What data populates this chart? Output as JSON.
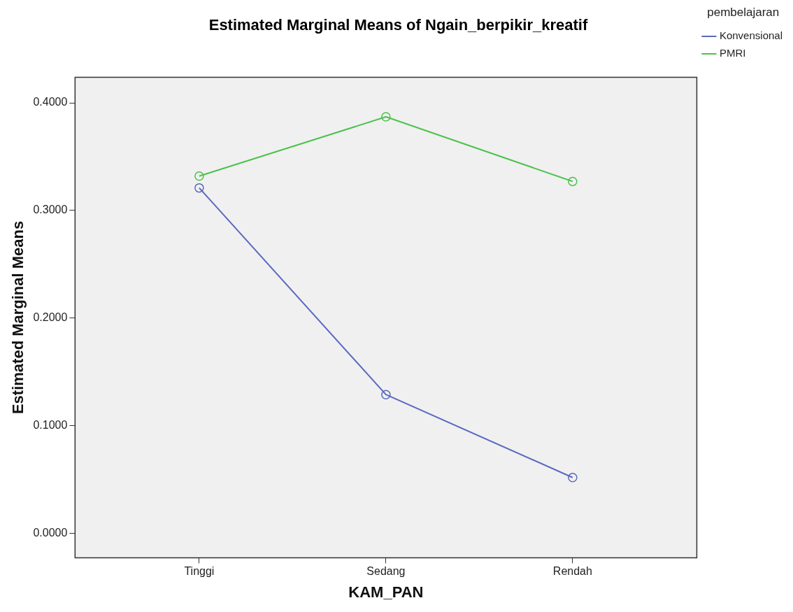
{
  "chart_data": {
    "type": "line",
    "title": "Estimated Marginal Means of Ngain_berpikir_kreatif",
    "xlabel": "KAM_PAN",
    "ylabel": "Estimated Marginal Means",
    "legend_title": "pembelajaran",
    "categories": [
      "Tinggi",
      "Sedang",
      "Rendah"
    ],
    "series": [
      {
        "name": "Konvensional",
        "color": "#5a68c0",
        "values": [
          0.321,
          0.129,
          0.052
        ]
      },
      {
        "name": "PMRI",
        "color": "#4cc24c",
        "values": [
          0.332,
          0.387,
          0.327
        ]
      }
    ],
    "ylim": [
      -0.0225,
      0.4238
    ],
    "yticks": [
      {
        "value": 0,
        "label": "0.0000"
      },
      {
        "value": 0.1,
        "label": "0.1000"
      },
      {
        "value": 0.2,
        "label": "0.2000"
      },
      {
        "value": 0.3,
        "label": "0.3000"
      },
      {
        "value": 0.4,
        "label": "0.4000"
      }
    ],
    "grid": false,
    "legend": "top right",
    "marker": "circle",
    "line_style": "solid"
  }
}
